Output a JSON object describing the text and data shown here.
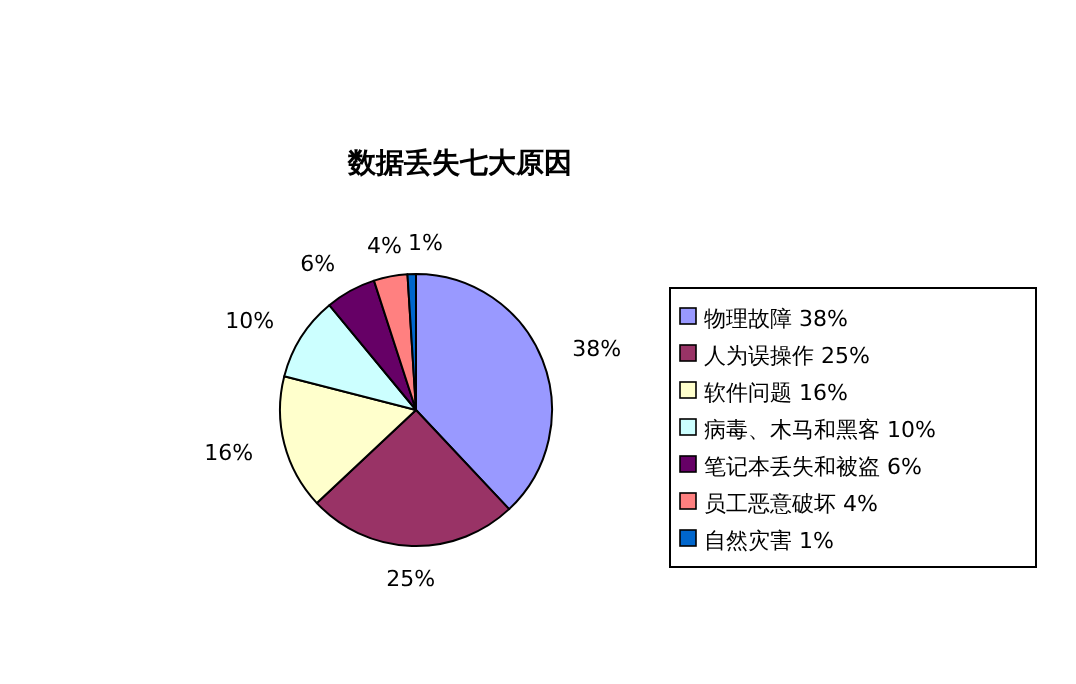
{
  "chart_data": {
    "type": "pie",
    "title": "数据丢失七大原因",
    "categories": [
      "物理故障 38%",
      "人为误操作 25%",
      "软件问题 16%",
      "病毒、木马和黑客 10%",
      "笔记本丢失和被盗 6%",
      "员工恶意破坏 4%",
      "自然灾害 1%"
    ],
    "values": [
      38,
      25,
      16,
      10,
      6,
      4,
      1
    ],
    "value_labels": [
      "38%",
      "25%",
      "16%",
      "10%",
      "6%",
      "4%",
      "1%"
    ],
    "colors": [
      "#9999ff",
      "#993366",
      "#ffffcc",
      "#ccffff",
      "#660066",
      "#ff8080",
      "#0066cc"
    ],
    "legend": "right"
  }
}
